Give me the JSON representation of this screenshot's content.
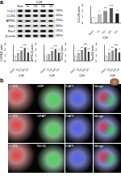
{
  "panels": [
    "a",
    "b"
  ],
  "blot": {
    "group": "ICH",
    "lanes": [
      "Sham",
      "6h",
      "12h",
      "24h",
      "72h"
    ],
    "rows": [
      {
        "protein": "CCL2",
        "mw": "13kDa"
      },
      {
        "protein": "CCR1",
        "mw": "41kDa"
      },
      {
        "protein": "APRIL",
        "mw": "27kDa"
      },
      {
        "protein": "SRC",
        "mw": "60kDa"
      },
      {
        "protein": "Rac1",
        "mw": "21kDa"
      },
      {
        "protein": "β-actin",
        "mw": "42kDa"
      }
    ]
  },
  "chart_data": [
    {
      "type": "bar",
      "y_label": "CCL2/β-actin",
      "x_label": "ICH",
      "categories": [
        "Sham",
        "6h",
        "12h",
        "24h",
        "72h"
      ],
      "values": [
        1.0,
        1.5,
        2.1,
        2.6,
        1.7
      ],
      "sig": [
        null,
        "*",
        "**",
        "***",
        "*"
      ],
      "colors": [
        "#ffffff",
        "#bfbfbf",
        "#8c8c8c",
        "#4d4d4d",
        "#1a1a1a"
      ],
      "ylim": [
        0,
        3
      ],
      "yticks": [
        0,
        1,
        2,
        3
      ]
    },
    {
      "type": "bar",
      "y_label": "CCR1/β-actin",
      "x_label": "ICH",
      "categories": [
        "Sham",
        "6h",
        "12h",
        "24h",
        "72h"
      ],
      "values": [
        1.0,
        1.4,
        1.9,
        2.4,
        1.6
      ],
      "sig": [
        null,
        "*",
        "**",
        "***",
        "*"
      ],
      "colors": [
        "#ffffff",
        "#bfbfbf",
        "#8c8c8c",
        "#4d4d4d",
        "#1a1a1a"
      ],
      "ylim": [
        0,
        3
      ],
      "yticks": [
        0,
        1,
        2,
        3
      ]
    },
    {
      "type": "bar",
      "y_label": "APRIL/β-actin",
      "x_label": "ICH",
      "categories": [
        "Sham",
        "6h",
        "12h",
        "24h",
        "72h"
      ],
      "values": [
        1.0,
        1.3,
        1.8,
        2.2,
        1.5
      ],
      "sig": [
        null,
        null,
        "**",
        "***",
        "*"
      ],
      "colors": [
        "#ffffff",
        "#bfbfbf",
        "#8c8c8c",
        "#4d4d4d",
        "#1a1a1a"
      ],
      "ylim": [
        0,
        3
      ],
      "yticks": [
        0,
        1,
        2,
        3
      ]
    },
    {
      "type": "bar",
      "y_label": "SRC/β-actin",
      "x_label": "ICH",
      "categories": [
        "Sham",
        "6h",
        "12h",
        "24h",
        "72h"
      ],
      "values": [
        1.0,
        1.4,
        2.0,
        2.5,
        1.7
      ],
      "sig": [
        null,
        "*",
        "**",
        "***",
        "**"
      ],
      "colors": [
        "#ffffff",
        "#bfbfbf",
        "#8c8c8c",
        "#4d4d4d",
        "#1a1a1a"
      ],
      "ylim": [
        0,
        3
      ],
      "yticks": [
        0,
        1,
        2,
        3
      ]
    },
    {
      "type": "bar",
      "y_label": "Rac1/β-actin",
      "x_label": "ICH",
      "categories": [
        "Sham",
        "6h",
        "12h",
        "24h",
        "72h"
      ],
      "values": [
        1.0,
        1.5,
        1.9,
        2.3,
        1.6
      ],
      "sig": [
        null,
        "*",
        "**",
        "***",
        "*"
      ],
      "colors": [
        "#ffffff",
        "#bfbfbf",
        "#8c8c8c",
        "#4d4d4d",
        "#1a1a1a"
      ],
      "ylim": [
        0,
        3
      ],
      "yticks": [
        0,
        1,
        2,
        3
      ]
    }
  ],
  "images": {
    "rows": [
      {
        "columns": [
          "CCR1",
          "vWF",
          "DAPI",
          "Merge"
        ]
      },
      {
        "columns": [
          "CCR1",
          "GFAP",
          "DAPI",
          "Merge"
        ]
      },
      {
        "columns": [
          "CCR1",
          "NeuN",
          "DAPI",
          "Merge"
        ]
      }
    ]
  }
}
